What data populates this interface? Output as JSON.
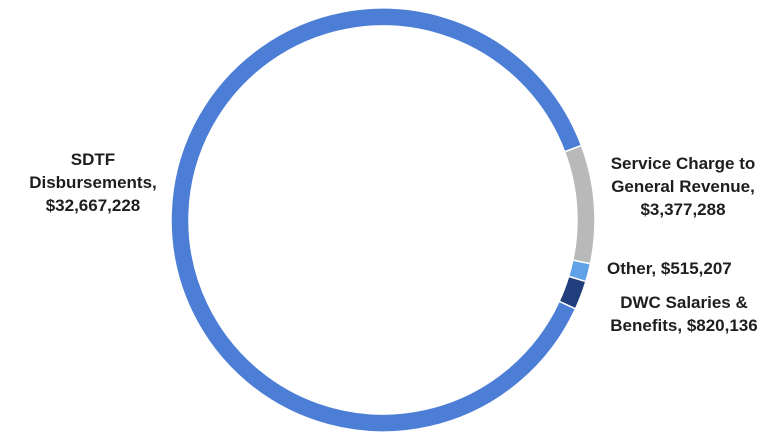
{
  "chart_data": {
    "type": "donut",
    "categories": [
      "Service Charge to General Revenue,",
      "Other,",
      "DWC Salaries & Benefits,",
      "SDTF Disbursements,"
    ],
    "values": [
      3377288,
      515207,
      820136,
      32667228
    ],
    "value_labels": [
      "$3,377,288",
      "$515,207",
      "$820,136",
      "$32,667,228"
    ],
    "colors": [
      "#b9b9b9",
      "#5fa2e8",
      "#213f7c",
      "#4c7ed6"
    ]
  }
}
